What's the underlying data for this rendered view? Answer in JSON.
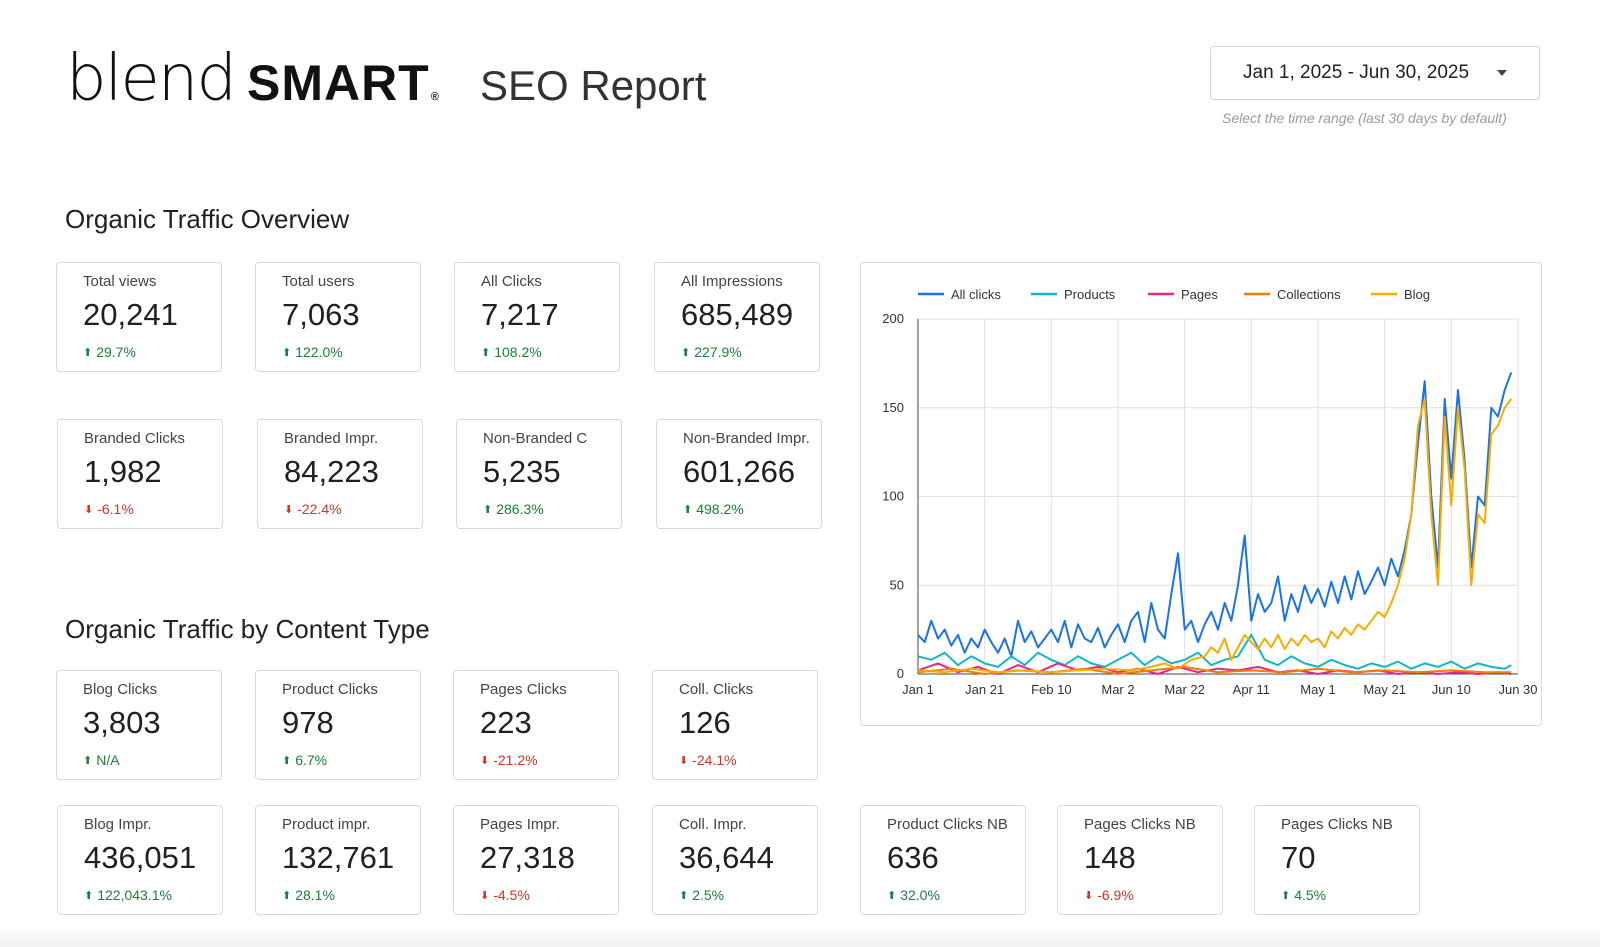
{
  "header": {
    "logo_main": "blend",
    "logo_bold": "SMART",
    "logo_reg": "®",
    "report_title": "SEO Report",
    "date_range": "Jan 1, 2025 - Jun 30, 2025",
    "date_hint": "Select the time range (last 30 days by default)"
  },
  "sections": {
    "overview_title": "Organic Traffic Overview",
    "content_type_title": "Organic Traffic by Content Type"
  },
  "overview_cards": [
    {
      "label": "Total views",
      "value": "20,241",
      "delta": "29.7%",
      "dir": "up"
    },
    {
      "label": "Total users",
      "value": "7,063",
      "delta": "122.0%",
      "dir": "up"
    },
    {
      "label": "All Clicks",
      "value": "7,217",
      "delta": "108.2%",
      "dir": "up"
    },
    {
      "label": "All Impressions",
      "value": "685,489",
      "delta": "227.9%",
      "dir": "up"
    },
    {
      "label": "Branded Clicks",
      "value": "1,982",
      "delta": "-6.1%",
      "dir": "down"
    },
    {
      "label": "Branded Impr.",
      "value": "84,223",
      "delta": "-22.4%",
      "dir": "down"
    },
    {
      "label": "Non-Branded C",
      "value": "5,235",
      "delta": "286.3%",
      "dir": "up"
    },
    {
      "label": "Non-Branded Impr.",
      "value": "601,266",
      "delta": "498.2%",
      "dir": "up"
    }
  ],
  "content_cards": [
    {
      "label": "Blog Clicks",
      "value": "3,803",
      "delta": "N/A",
      "dir": "up"
    },
    {
      "label": "Product Clicks",
      "value": "978",
      "delta": "6.7%",
      "dir": "up"
    },
    {
      "label": "Pages Clicks",
      "value": "223",
      "delta": "-21.2%",
      "dir": "down"
    },
    {
      "label": "Coll. Clicks",
      "value": "126",
      "delta": "-24.1%",
      "dir": "down"
    },
    {
      "label": "Blog Impr.",
      "value": "436,051",
      "delta": "122,043.1%",
      "dir": "up"
    },
    {
      "label": "Product impr.",
      "value": "132,761",
      "delta": "28.1%",
      "dir": "up"
    },
    {
      "label": "Pages Impr.",
      "value": "27,318",
      "delta": "-4.5%",
      "dir": "down"
    },
    {
      "label": "Coll. Impr.",
      "value": "36,644",
      "delta": "2.5%",
      "dir": "up"
    },
    {
      "label": "Product Clicks NB",
      "value": "636",
      "delta": "32.0%",
      "dir": "up"
    },
    {
      "label": "Pages Clicks NB",
      "value": "148",
      "delta": "-6.9%",
      "dir": "down"
    },
    {
      "label": "Pages Clicks NB",
      "value": "70",
      "delta": "4.5%",
      "dir": "up"
    }
  ],
  "icons": {
    "up": "arrow-up-icon",
    "down": "arrow-down-icon",
    "dropdown": "caret-down-icon"
  },
  "colors": {
    "up": "#188038",
    "down": "#d93025",
    "border": "#d9d9d9"
  },
  "chart_data": {
    "type": "line",
    "title": "",
    "xlabel": "",
    "ylabel": "",
    "ylim": [
      0,
      200
    ],
    "yticks": [
      "0",
      "50",
      "100",
      "150",
      "200"
    ],
    "x_range": [
      0,
      180
    ],
    "xticks": [
      {
        "x": 0,
        "label": "Jan 1"
      },
      {
        "x": 20,
        "label": "Jan 21"
      },
      {
        "x": 40,
        "label": "Feb 10"
      },
      {
        "x": 60,
        "label": "Mar 2"
      },
      {
        "x": 80,
        "label": "Mar 22"
      },
      {
        "x": 100,
        "label": "Apr 11"
      },
      {
        "x": 120,
        "label": "May 1"
      },
      {
        "x": 140,
        "label": "May 21"
      },
      {
        "x": 160,
        "label": "Jun 10"
      },
      {
        "x": 180,
        "label": "Jun 30"
      }
    ],
    "legend_position": "top",
    "series": [
      {
        "name": "All clicks",
        "color": "#1a73e8",
        "points": [
          [
            0,
            22
          ],
          [
            2,
            18
          ],
          [
            4,
            30
          ],
          [
            6,
            20
          ],
          [
            8,
            25
          ],
          [
            10,
            16
          ],
          [
            12,
            22
          ],
          [
            14,
            12
          ],
          [
            16,
            20
          ],
          [
            18,
            15
          ],
          [
            20,
            25
          ],
          [
            22,
            18
          ],
          [
            24,
            12
          ],
          [
            26,
            20
          ],
          [
            28,
            10
          ],
          [
            30,
            30
          ],
          [
            32,
            18
          ],
          [
            34,
            24
          ],
          [
            36,
            15
          ],
          [
            38,
            20
          ],
          [
            40,
            25
          ],
          [
            42,
            18
          ],
          [
            44,
            30
          ],
          [
            46,
            15
          ],
          [
            48,
            28
          ],
          [
            50,
            20
          ],
          [
            52,
            18
          ],
          [
            54,
            26
          ],
          [
            56,
            15
          ],
          [
            58,
            22
          ],
          [
            60,
            28
          ],
          [
            62,
            18
          ],
          [
            64,
            30
          ],
          [
            66,
            35
          ],
          [
            68,
            18
          ],
          [
            70,
            40
          ],
          [
            72,
            25
          ],
          [
            74,
            20
          ],
          [
            76,
            45
          ],
          [
            78,
            68
          ],
          [
            80,
            25
          ],
          [
            82,
            30
          ],
          [
            84,
            18
          ],
          [
            86,
            28
          ],
          [
            88,
            35
          ],
          [
            90,
            25
          ],
          [
            92,
            40
          ],
          [
            94,
            30
          ],
          [
            96,
            50
          ],
          [
            98,
            78
          ],
          [
            100,
            30
          ],
          [
            102,
            45
          ],
          [
            104,
            35
          ],
          [
            106,
            40
          ],
          [
            108,
            55
          ],
          [
            110,
            30
          ],
          [
            112,
            45
          ],
          [
            114,
            35
          ],
          [
            116,
            50
          ],
          [
            118,
            40
          ],
          [
            120,
            48
          ],
          [
            122,
            38
          ],
          [
            124,
            52
          ],
          [
            126,
            40
          ],
          [
            128,
            55
          ],
          [
            130,
            42
          ],
          [
            132,
            58
          ],
          [
            134,
            45
          ],
          [
            136,
            52
          ],
          [
            138,
            60
          ],
          [
            140,
            50
          ],
          [
            142,
            65
          ],
          [
            144,
            55
          ],
          [
            146,
            70
          ],
          [
            148,
            90
          ],
          [
            150,
            130
          ],
          [
            152,
            165
          ],
          [
            154,
            100
          ],
          [
            156,
            60
          ],
          [
            158,
            155
          ],
          [
            160,
            110
          ],
          [
            162,
            160
          ],
          [
            164,
            120
          ],
          [
            166,
            60
          ],
          [
            168,
            100
          ],
          [
            170,
            95
          ],
          [
            172,
            150
          ],
          [
            174,
            145
          ],
          [
            176,
            160
          ],
          [
            178,
            170
          ]
        ]
      },
      {
        "name": "Products",
        "color": "#12b5cb",
        "points": [
          [
            0,
            10
          ],
          [
            4,
            8
          ],
          [
            8,
            12
          ],
          [
            12,
            5
          ],
          [
            16,
            10
          ],
          [
            20,
            6
          ],
          [
            24,
            4
          ],
          [
            28,
            10
          ],
          [
            32,
            5
          ],
          [
            36,
            12
          ],
          [
            40,
            8
          ],
          [
            44,
            5
          ],
          [
            48,
            10
          ],
          [
            52,
            6
          ],
          [
            56,
            4
          ],
          [
            60,
            8
          ],
          [
            64,
            12
          ],
          [
            68,
            5
          ],
          [
            72,
            10
          ],
          [
            76,
            6
          ],
          [
            80,
            8
          ],
          [
            84,
            12
          ],
          [
            88,
            5
          ],
          [
            92,
            8
          ],
          [
            96,
            10
          ],
          [
            100,
            22
          ],
          [
            104,
            8
          ],
          [
            108,
            5
          ],
          [
            112,
            10
          ],
          [
            116,
            6
          ],
          [
            120,
            4
          ],
          [
            124,
            8
          ],
          [
            128,
            5
          ],
          [
            132,
            3
          ],
          [
            136,
            6
          ],
          [
            140,
            4
          ],
          [
            144,
            7
          ],
          [
            148,
            3
          ],
          [
            152,
            6
          ],
          [
            156,
            4
          ],
          [
            160,
            7
          ],
          [
            164,
            3
          ],
          [
            168,
            6
          ],
          [
            172,
            4
          ],
          [
            176,
            3
          ],
          [
            178,
            5
          ]
        ]
      },
      {
        "name": "Pages",
        "color": "#e52592",
        "points": [
          [
            0,
            2
          ],
          [
            6,
            6
          ],
          [
            12,
            1
          ],
          [
            18,
            4
          ],
          [
            24,
            0
          ],
          [
            30,
            5
          ],
          [
            36,
            1
          ],
          [
            42,
            6
          ],
          [
            48,
            2
          ],
          [
            54,
            4
          ],
          [
            60,
            1
          ],
          [
            66,
            3
          ],
          [
            72,
            0
          ],
          [
            78,
            4
          ],
          [
            84,
            1
          ],
          [
            90,
            3
          ],
          [
            96,
            2
          ],
          [
            102,
            4
          ],
          [
            108,
            1
          ],
          [
            114,
            2
          ],
          [
            120,
            0
          ],
          [
            126,
            2
          ],
          [
            132,
            1
          ],
          [
            138,
            2
          ],
          [
            144,
            0
          ],
          [
            150,
            1
          ],
          [
            156,
            0
          ],
          [
            162,
            1
          ],
          [
            168,
            0
          ],
          [
            174,
            1
          ],
          [
            178,
            0
          ]
        ]
      },
      {
        "name": "Collections",
        "color": "#f57c00",
        "points": [
          [
            0,
            1
          ],
          [
            10,
            3
          ],
          [
            20,
            0
          ],
          [
            30,
            2
          ],
          [
            40,
            1
          ],
          [
            50,
            3
          ],
          [
            60,
            0
          ],
          [
            70,
            2
          ],
          [
            80,
            4
          ],
          [
            90,
            1
          ],
          [
            100,
            2
          ],
          [
            110,
            1
          ],
          [
            120,
            3
          ],
          [
            130,
            1
          ],
          [
            140,
            2
          ],
          [
            150,
            1
          ],
          [
            160,
            2
          ],
          [
            170,
            1
          ],
          [
            178,
            1
          ]
        ]
      },
      {
        "name": "Blog",
        "color": "#f9ab00",
        "points": [
          [
            0,
            2
          ],
          [
            8,
            1
          ],
          [
            16,
            3
          ],
          [
            24,
            1
          ],
          [
            32,
            2
          ],
          [
            40,
            1
          ],
          [
            48,
            2
          ],
          [
            56,
            3
          ],
          [
            64,
            2
          ],
          [
            70,
            4
          ],
          [
            74,
            6
          ],
          [
            78,
            3
          ],
          [
            82,
            8
          ],
          [
            86,
            10
          ],
          [
            88,
            15
          ],
          [
            90,
            12
          ],
          [
            92,
            20
          ],
          [
            94,
            8
          ],
          [
            96,
            15
          ],
          [
            98,
            22
          ],
          [
            100,
            18
          ],
          [
            102,
            14
          ],
          [
            104,
            20
          ],
          [
            106,
            15
          ],
          [
            108,
            22
          ],
          [
            110,
            14
          ],
          [
            112,
            20
          ],
          [
            114,
            16
          ],
          [
            116,
            22
          ],
          [
            118,
            18
          ],
          [
            120,
            20
          ],
          [
            122,
            15
          ],
          [
            124,
            24
          ],
          [
            126,
            20
          ],
          [
            128,
            26
          ],
          [
            130,
            22
          ],
          [
            132,
            28
          ],
          [
            134,
            25
          ],
          [
            136,
            30
          ],
          [
            138,
            35
          ],
          [
            140,
            32
          ],
          [
            142,
            40
          ],
          [
            144,
            50
          ],
          [
            146,
            65
          ],
          [
            148,
            90
          ],
          [
            150,
            140
          ],
          [
            152,
            155
          ],
          [
            154,
            90
          ],
          [
            156,
            50
          ],
          [
            158,
            145
          ],
          [
            160,
            95
          ],
          [
            162,
            150
          ],
          [
            164,
            115
          ],
          [
            166,
            50
          ],
          [
            168,
            90
          ],
          [
            170,
            85
          ],
          [
            172,
            135
          ],
          [
            174,
            140
          ],
          [
            176,
            150
          ],
          [
            178,
            155
          ]
        ]
      }
    ]
  }
}
